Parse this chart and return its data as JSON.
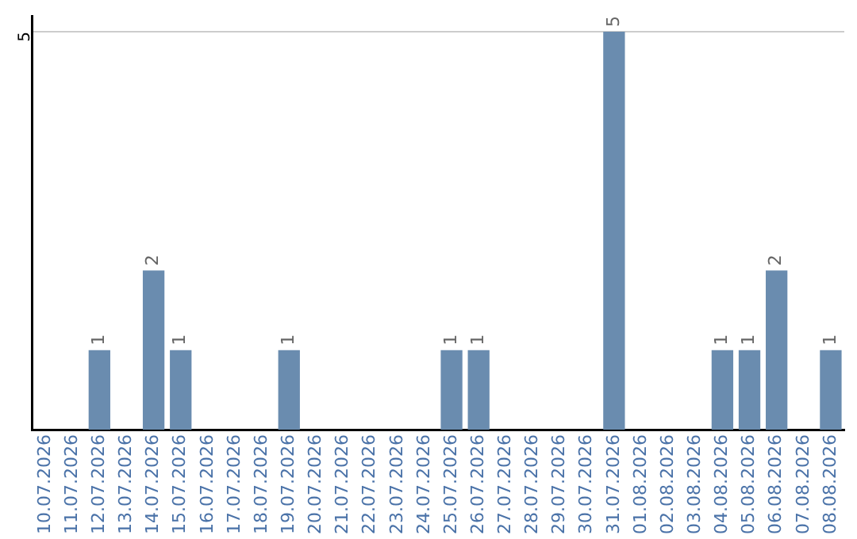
{
  "chart_data": {
    "type": "bar",
    "categories": [
      "10.07.2026",
      "11.07.2026",
      "12.07.2026",
      "13.07.2026",
      "14.07.2026",
      "15.07.2026",
      "16.07.2026",
      "17.07.2026",
      "18.07.2026",
      "19.07.2026",
      "20.07.2026",
      "21.07.2026",
      "22.07.2026",
      "23.07.2026",
      "24.07.2026",
      "25.07.2026",
      "26.07.2026",
      "27.07.2026",
      "28.07.2026",
      "29.07.2026",
      "30.07.2026",
      "31.07.2026",
      "01.08.2026",
      "02.08.2026",
      "03.08.2026",
      "04.08.2026",
      "05.08.2026",
      "06.08.2026",
      "07.08.2026",
      "08.08.2026"
    ],
    "values": [
      0,
      0,
      1,
      0,
      2,
      1,
      0,
      0,
      0,
      1,
      0,
      0,
      0,
      0,
      0,
      1,
      1,
      0,
      0,
      0,
      0,
      5,
      0,
      0,
      0,
      1,
      1,
      2,
      0,
      1
    ],
    "value_labels": [
      null,
      null,
      "1",
      null,
      "2",
      "1",
      null,
      null,
      null,
      "1",
      null,
      null,
      null,
      null,
      null,
      "1",
      "1",
      null,
      null,
      null,
      null,
      "5",
      null,
      null,
      null,
      "1",
      "1",
      "2",
      null,
      "1"
    ],
    "color": "#6a8caf",
    "ylim": [
      0,
      5.2
    ],
    "yticks": [
      5
    ],
    "grid": "y",
    "legend": false
  }
}
